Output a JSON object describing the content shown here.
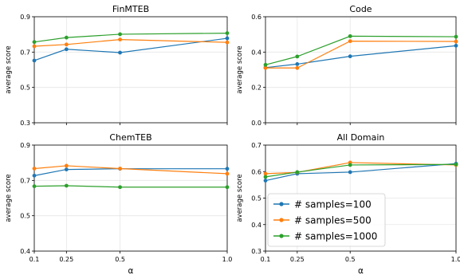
{
  "figure": {
    "legend": {
      "placement": "lower-right of All Domain panel",
      "entries": [
        "# samples=100",
        "# samples=500",
        "# samples=1000"
      ]
    }
  },
  "colors": {
    "series_100": "#1f77b4",
    "series_500": "#ff7f0e",
    "series_1000": "#2ca02c",
    "grid": "#e6e6e6"
  },
  "chart_data": [
    {
      "type": "line",
      "title": "FinMTEB",
      "xlabel": "",
      "ylabel": "average score",
      "x": [
        0.1,
        0.25,
        0.5,
        1.0
      ],
      "xlim": [
        0.1,
        1.0
      ],
      "ylim": [
        0.3,
        0.9
      ],
      "yticks": [
        "0.3",
        "0.5",
        "0.7",
        "0.9"
      ],
      "xticks": [],
      "grid": true,
      "series": [
        {
          "name": "# samples=100",
          "values": [
            0.652,
            0.716,
            0.697,
            0.778
          ]
        },
        {
          "name": "# samples=500",
          "values": [
            0.733,
            0.743,
            0.771,
            0.755
          ]
        },
        {
          "name": "# samples=1000",
          "values": [
            0.757,
            0.782,
            0.801,
            0.807
          ]
        }
      ]
    },
    {
      "type": "line",
      "title": "Code",
      "xlabel": "",
      "ylabel": "average score",
      "x": [
        0.1,
        0.25,
        0.5,
        1.0
      ],
      "xlim": [
        0.1,
        1.0
      ],
      "ylim": [
        0.0,
        0.6
      ],
      "yticks": [
        "0.0",
        "0.2",
        "0.4",
        "0.6"
      ],
      "xticks": [],
      "grid": true,
      "series": [
        {
          "name": "# samples=100",
          "values": [
            0.312,
            0.332,
            0.376,
            0.436
          ]
        },
        {
          "name": "# samples=500",
          "values": [
            0.31,
            0.31,
            0.462,
            0.46
          ]
        },
        {
          "name": "# samples=1000",
          "values": [
            0.328,
            0.375,
            0.49,
            0.487
          ]
        }
      ]
    },
    {
      "type": "line",
      "title": "ChemTEB",
      "xlabel": "α",
      "ylabel": "average score",
      "x": [
        0.1,
        0.25,
        0.5,
        1.0
      ],
      "xlim": [
        0.1,
        1.0
      ],
      "ylim": [
        0.4,
        0.9
      ],
      "yticks": [
        "0.4",
        "0.5",
        "0.7",
        "0.9"
      ],
      "xticks": [
        "0.1",
        "0.25",
        "0.5",
        "1.0"
      ],
      "grid": true,
      "series": [
        {
          "name": "# samples=100",
          "values": [
            0.727,
            0.762,
            0.766,
            0.766
          ]
        },
        {
          "name": "# samples=500",
          "values": [
            0.767,
            0.783,
            0.767,
            0.738
          ]
        },
        {
          "name": "# samples=1000",
          "values": [
            0.667,
            0.67,
            0.662,
            0.662
          ]
        }
      ]
    },
    {
      "type": "line",
      "title": "All Domain",
      "xlabel": "α",
      "ylabel": "average score",
      "x": [
        0.1,
        0.25,
        0.5,
        1.0
      ],
      "xlim": [
        0.1,
        1.0
      ],
      "ylim": [
        0.3,
        0.7
      ],
      "yticks": [
        "0.3",
        "0.4",
        "0.5",
        "0.6",
        "0.7"
      ],
      "xticks": [
        "0.1",
        "0.25",
        "0.5",
        "1.0"
      ],
      "grid": true,
      "series": [
        {
          "name": "# samples=100",
          "values": [
            0.566,
            0.592,
            0.598,
            0.63
          ]
        },
        {
          "name": "# samples=500",
          "values": [
            0.592,
            0.597,
            0.634,
            0.625
          ]
        },
        {
          "name": "# samples=1000",
          "values": [
            0.58,
            0.598,
            0.625,
            0.627
          ]
        }
      ]
    }
  ]
}
